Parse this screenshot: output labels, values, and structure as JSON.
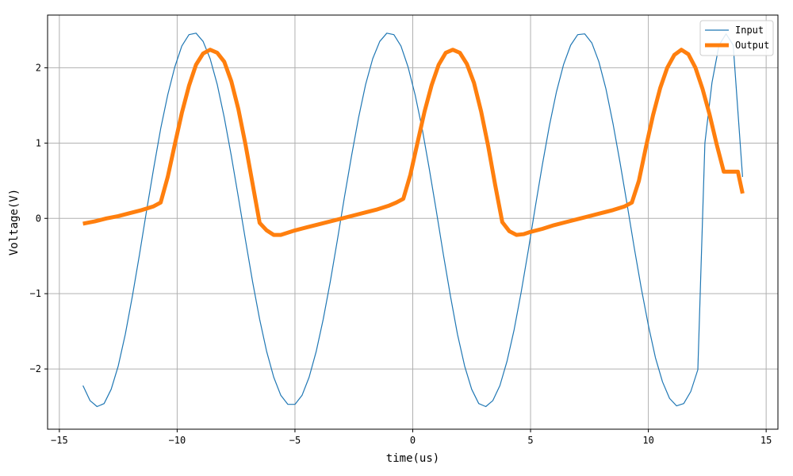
{
  "chart_data": {
    "type": "line",
    "title": "",
    "xlabel": "time(us)",
    "ylabel": "Voltage(V)",
    "xlim": [
      -15.5,
      15.5
    ],
    "ylim": [
      -2.8,
      2.7
    ],
    "xticks": [
      -15,
      -10,
      -5,
      0,
      5,
      10,
      15
    ],
    "yticks": [
      -2,
      -1,
      0,
      1,
      2
    ],
    "xtick_labels": [
      "−15",
      "−10",
      "−5",
      "0",
      "5",
      "10",
      "15"
    ],
    "ytick_labels": [
      "−2",
      "−1",
      "0",
      "1",
      "2"
    ],
    "grid": true,
    "legend_position": "top-right",
    "series": [
      {
        "name": "Input",
        "color": "#1f77b4",
        "linewidth": 1.2,
        "x": [
          -14.0,
          -13.7,
          -13.4,
          -13.1,
          -12.8,
          -12.5,
          -12.2,
          -11.9,
          -11.6,
          -11.3,
          -11.0,
          -10.7,
          -10.4,
          -10.1,
          -9.8,
          -9.5,
          -9.2,
          -8.9,
          -8.6,
          -8.3,
          -8.0,
          -7.7,
          -7.4,
          -7.1,
          -6.8,
          -6.5,
          -6.2,
          -5.9,
          -5.6,
          -5.3,
          -5.0,
          -4.7,
          -4.4,
          -4.1,
          -3.8,
          -3.5,
          -3.2,
          -2.9,
          -2.6,
          -2.3,
          -2.0,
          -1.7,
          -1.4,
          -1.1,
          -0.8,
          -0.5,
          -0.2,
          0.1,
          0.4,
          0.7,
          1.0,
          1.3,
          1.6,
          1.9,
          2.2,
          2.5,
          2.8,
          3.1,
          3.4,
          3.7,
          4.0,
          4.3,
          4.6,
          4.9,
          5.2,
          5.5,
          5.8,
          6.1,
          6.4,
          6.7,
          7.0,
          7.3,
          7.6,
          7.9,
          8.2,
          8.5,
          8.8,
          9.1,
          9.4,
          9.7,
          10.0,
          10.3,
          10.6,
          10.9,
          11.2,
          11.5,
          11.8,
          12.1,
          12.4,
          12.7,
          13.0,
          13.3,
          13.6,
          14.0
        ],
        "y": [
          -2.22,
          -2.42,
          -2.5,
          -2.46,
          -2.27,
          -1.96,
          -1.54,
          -1.03,
          -0.48,
          0.1,
          0.66,
          1.19,
          1.64,
          2.01,
          2.29,
          2.44,
          2.46,
          2.35,
          2.12,
          1.78,
          1.34,
          0.83,
          0.28,
          -0.29,
          -0.84,
          -1.34,
          -1.77,
          -2.11,
          -2.35,
          -2.47,
          -2.47,
          -2.35,
          -2.11,
          -1.77,
          -1.34,
          -0.84,
          -0.29,
          0.28,
          0.83,
          1.34,
          1.78,
          2.12,
          2.35,
          2.46,
          2.44,
          2.29,
          2.01,
          1.64,
          1.19,
          0.66,
          0.1,
          -0.48,
          -1.03,
          -1.54,
          -1.96,
          -2.27,
          -2.46,
          -2.5,
          -2.42,
          -2.22,
          -1.9,
          -1.48,
          -0.98,
          -0.43,
          0.15,
          0.71,
          1.23,
          1.68,
          2.04,
          2.3,
          2.44,
          2.45,
          2.33,
          2.08,
          1.72,
          1.26,
          0.74,
          0.18,
          -0.39,
          -0.93,
          -1.42,
          -1.85,
          -2.17,
          -2.39,
          -2.49,
          -2.46,
          -2.3,
          -2.01,
          1.0,
          1.8,
          2.3,
          2.45,
          2.3,
          0.55
        ]
      },
      {
        "name": "Output",
        "color": "#ff7f0e",
        "linewidth": 5,
        "x": [
          -14.0,
          -13.5,
          -13.0,
          -12.5,
          -12.0,
          -11.5,
          -11.0,
          -10.7,
          -10.4,
          -10.1,
          -9.8,
          -9.5,
          -9.2,
          -8.9,
          -8.6,
          -8.3,
          -8.0,
          -7.7,
          -7.4,
          -7.1,
          -6.8,
          -6.5,
          -6.2,
          -5.9,
          -5.6,
          -5.3,
          -5.0,
          -4.5,
          -4.0,
          -3.5,
          -3.0,
          -2.5,
          -2.0,
          -1.5,
          -1.0,
          -0.7,
          -0.4,
          -0.1,
          0.2,
          0.5,
          0.8,
          1.1,
          1.4,
          1.7,
          2.0,
          2.3,
          2.6,
          2.9,
          3.2,
          3.5,
          3.8,
          4.1,
          4.4,
          4.7,
          5.0,
          5.5,
          6.0,
          6.5,
          7.0,
          7.5,
          8.0,
          8.5,
          9.0,
          9.3,
          9.6,
          9.9,
          10.2,
          10.5,
          10.8,
          11.1,
          11.4,
          11.7,
          12.0,
          12.3,
          12.6,
          12.9,
          13.2,
          13.5,
          13.8,
          14.0
        ],
        "y": [
          -0.07,
          -0.04,
          0.0,
          0.03,
          0.07,
          0.11,
          0.16,
          0.21,
          0.55,
          0.98,
          1.4,
          1.76,
          2.04,
          2.19,
          2.24,
          2.2,
          2.08,
          1.82,
          1.45,
          0.98,
          0.46,
          -0.06,
          -0.16,
          -0.22,
          -0.22,
          -0.19,
          -0.16,
          -0.12,
          -0.08,
          -0.04,
          0.0,
          0.04,
          0.08,
          0.12,
          0.17,
          0.21,
          0.26,
          0.58,
          1.0,
          1.42,
          1.77,
          2.04,
          2.2,
          2.24,
          2.2,
          2.05,
          1.8,
          1.42,
          0.96,
          0.44,
          -0.05,
          -0.17,
          -0.22,
          -0.21,
          -0.18,
          -0.14,
          -0.09,
          -0.05,
          -0.01,
          0.03,
          0.07,
          0.11,
          0.16,
          0.21,
          0.5,
          0.95,
          1.37,
          1.73,
          2.0,
          2.17,
          2.24,
          2.18,
          2.0,
          1.72,
          1.38,
          0.98,
          0.62,
          0.62,
          0.62,
          0.33
        ]
      }
    ]
  }
}
